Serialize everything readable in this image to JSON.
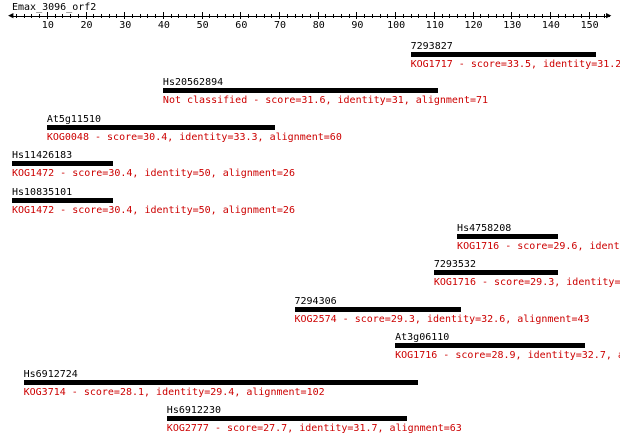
{
  "query": {
    "name": "Emax_3096_orf2",
    "length": 155
  },
  "axis": {
    "min": 1,
    "max": 155,
    "major_ticks": [
      10,
      20,
      30,
      40,
      50,
      60,
      70,
      80,
      90,
      100,
      110,
      120,
      130,
      140,
      150
    ],
    "minor_step": 2
  },
  "colors": {
    "bar": "#000000",
    "description": "#cc0000",
    "background": "#ffffff"
  },
  "hits": [
    {
      "name": "7293827",
      "start": 104,
      "end": 152,
      "description": "KOG1717 - score=33.5, identity=31.2"
    },
    {
      "name": "Hs20562894",
      "start": 40,
      "end": 111,
      "description": "Not classified - score=31.6, identity=31, alignment=71"
    },
    {
      "name": "At5g11510",
      "start": 10,
      "end": 69,
      "description": "KOG0048 - score=30.4, identity=33.3, alignment=60"
    },
    {
      "name": "Hs11426183",
      "start": 1,
      "end": 27,
      "description": "KOG1472 - score=30.4, identity=50, alignment=26"
    },
    {
      "name": "Hs10835101",
      "start": 1,
      "end": 27,
      "description": "KOG1472 - score=30.4, identity=50, alignment=26"
    },
    {
      "name": "Hs4758208",
      "start": 116,
      "end": 142,
      "description": "KOG1716 - score=29.6, identi"
    },
    {
      "name": "7293532",
      "start": 110,
      "end": 142,
      "description": "KOG1716 - score=29.3, identity="
    },
    {
      "name": "7294306",
      "start": 74,
      "end": 117,
      "description": "KOG2574 - score=29.3, identity=32.6, alignment=43"
    },
    {
      "name": "At3g06110",
      "start": 100,
      "end": 149,
      "description": "KOG1716 - score=28.9, identity=32.7, a"
    },
    {
      "name": "Hs6912724",
      "start": 4,
      "end": 106,
      "description": "KOG3714 - score=28.1, identity=29.4, alignment=102"
    },
    {
      "name": "Hs6912230",
      "start": 41,
      "end": 103,
      "description": "KOG2777 - score=27.7, identity=31.7, alignment=63"
    }
  ]
}
